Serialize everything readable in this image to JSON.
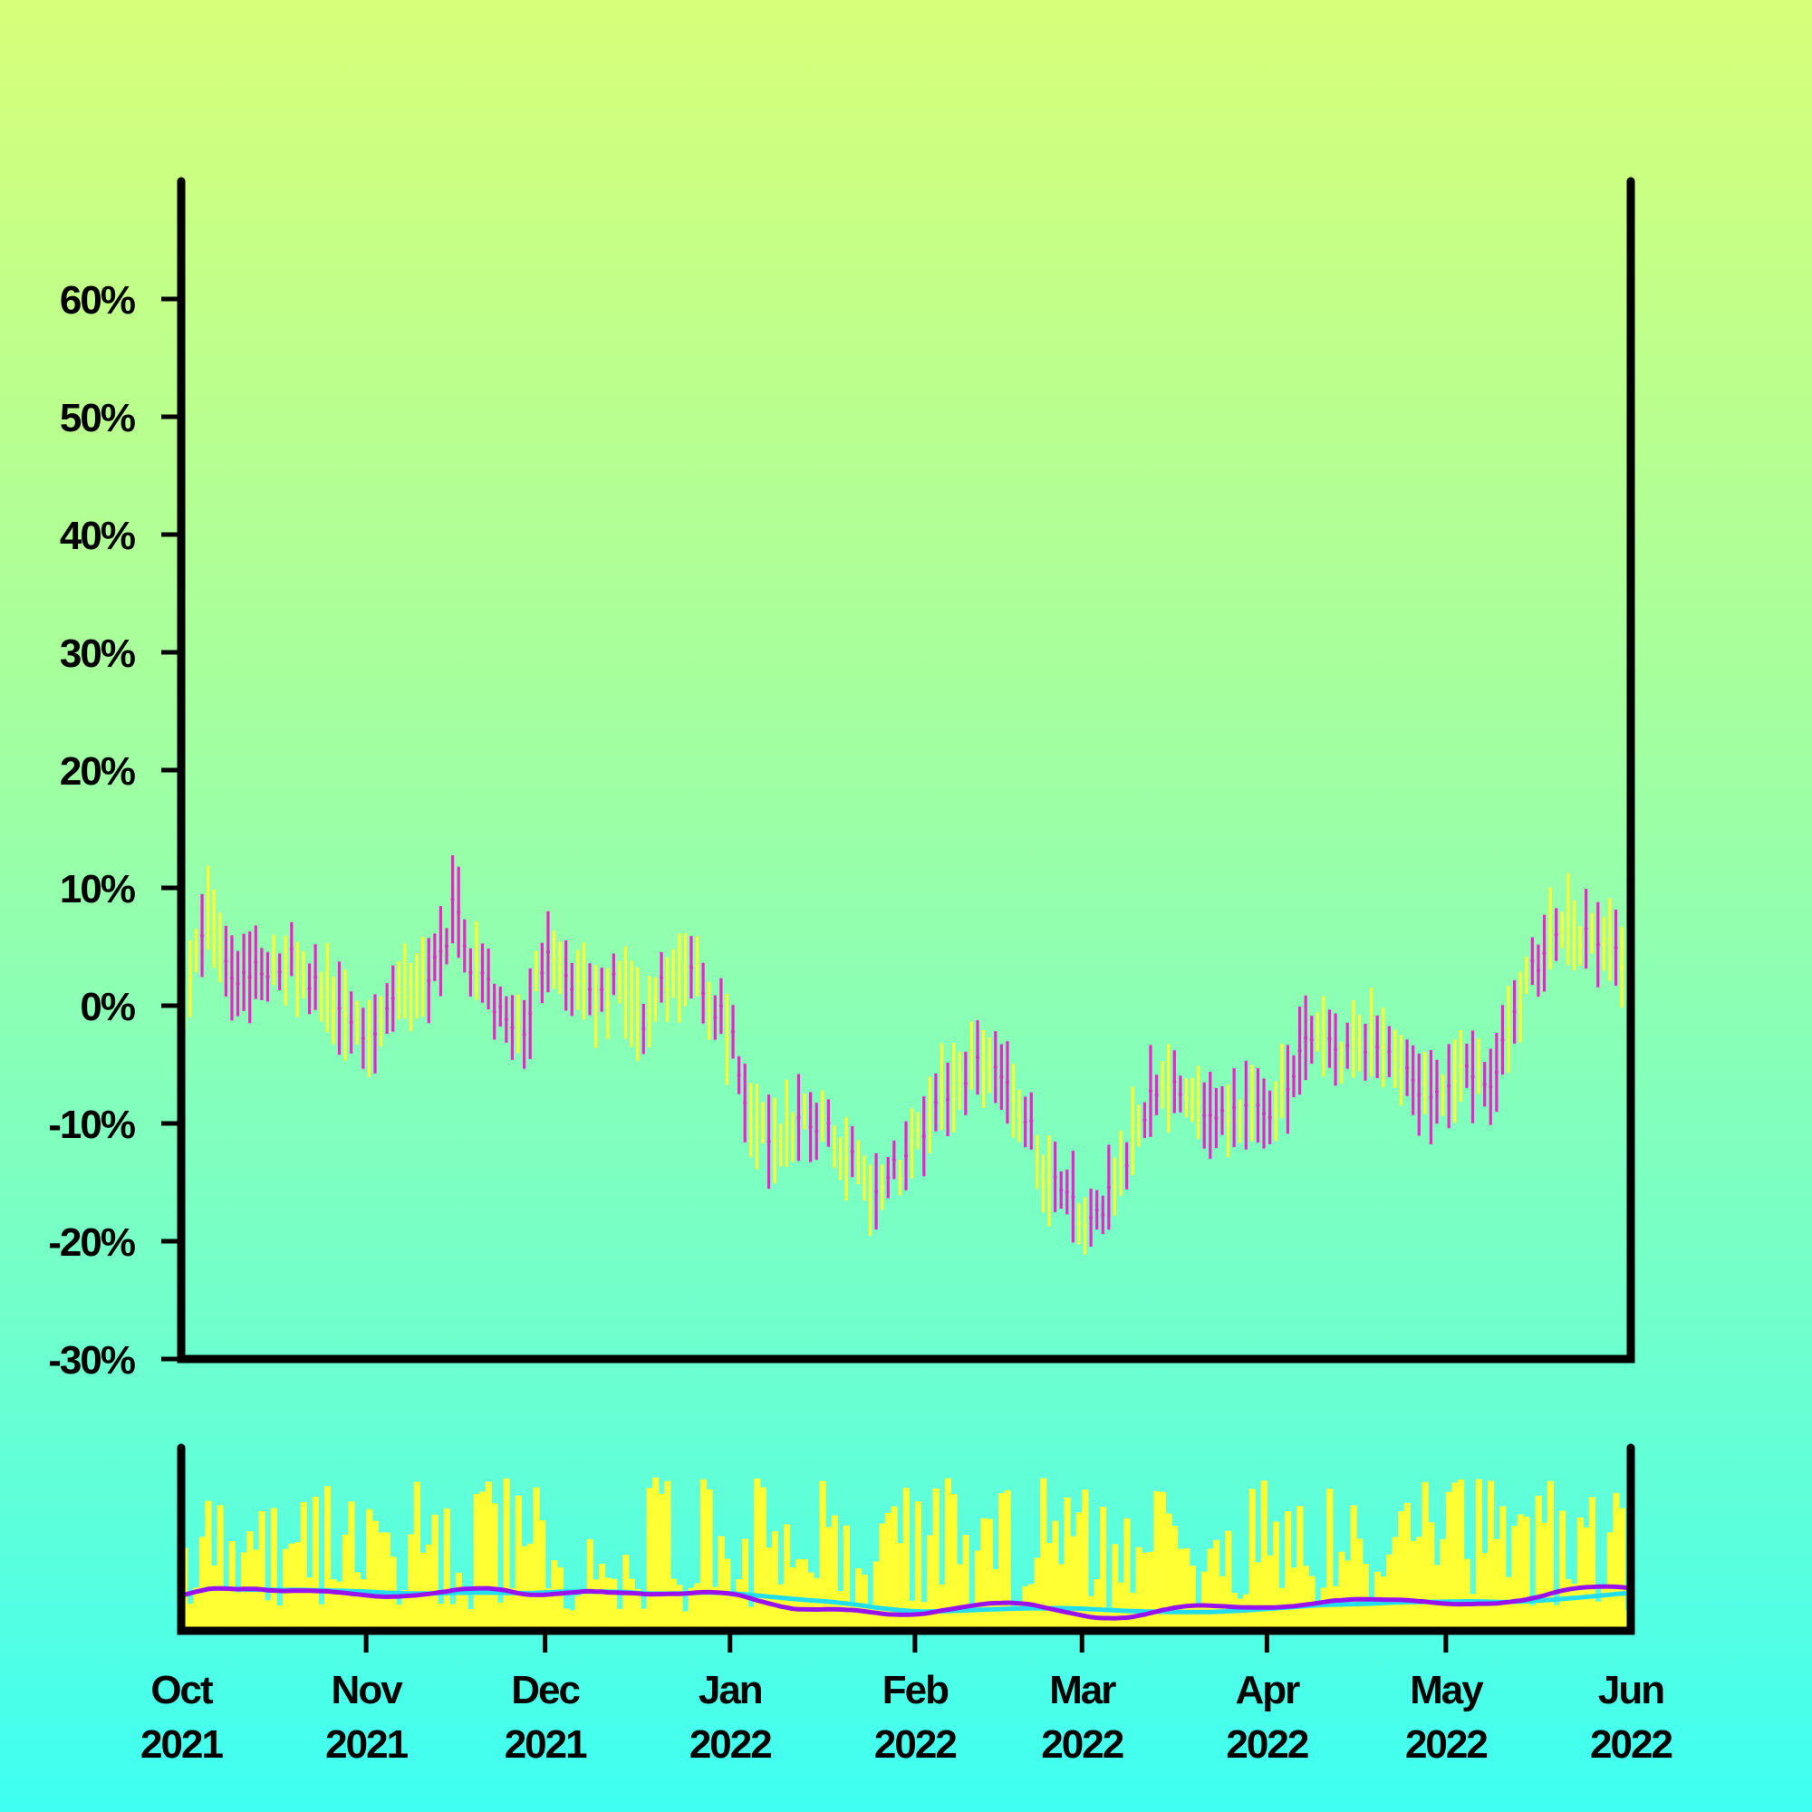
{
  "chart_data": {
    "type": "ohlc",
    "x_axis": {
      "type": "date",
      "range": [
        "2021-10-01",
        "2022-06-01"
      ],
      "ticks": [
        {
          "date": "2021-10-01",
          "month": "Oct",
          "year": "2021"
        },
        {
          "date": "2021-11-01",
          "month": "Nov",
          "year": "2021"
        },
        {
          "date": "2021-12-01",
          "month": "Dec",
          "year": "2021"
        },
        {
          "date": "2022-01-01",
          "month": "Jan",
          "year": "2022"
        },
        {
          "date": "2022-02-01",
          "month": "Feb",
          "year": "2022"
        },
        {
          "date": "2022-03-01",
          "month": "Mar",
          "year": "2022"
        },
        {
          "date": "2022-04-01",
          "month": "Apr",
          "year": "2022"
        },
        {
          "date": "2022-05-01",
          "month": "May",
          "year": "2022"
        },
        {
          "date": "2022-06-01",
          "month": "Jun",
          "year": "2022"
        }
      ]
    },
    "y_axis": {
      "unit": "percent",
      "range": [
        -30,
        70
      ],
      "ticks": [
        {
          "value": -30,
          "label": "-30%"
        },
        {
          "value": -20,
          "label": "-20%"
        },
        {
          "value": -10,
          "label": "-10%"
        },
        {
          "value": 0,
          "label": "0%"
        },
        {
          "value": 10,
          "label": "10%"
        },
        {
          "value": 20,
          "label": "20%"
        },
        {
          "value": 30,
          "label": "30%"
        },
        {
          "value": 40,
          "label": "40%"
        },
        {
          "value": 50,
          "label": "50%"
        },
        {
          "value": 60,
          "label": "60%"
        }
      ]
    },
    "colors": {
      "up": "#ffff33",
      "down": "#ee22cc",
      "volume": "#ffff33",
      "ma_fast": "#9911ee",
      "ma_slow": "#22ddee",
      "axis": "#000000"
    },
    "price_series": {
      "interval_days": 1,
      "points": [
        {
          "date": "2021-10-02",
          "value": 1
        },
        {
          "date": "2021-10-06",
          "value": 8
        },
        {
          "date": "2021-10-10",
          "value": 2
        },
        {
          "date": "2021-10-15",
          "value": 3
        },
        {
          "date": "2021-10-19",
          "value": 4
        },
        {
          "date": "2021-10-24",
          "value": 2
        },
        {
          "date": "2021-10-28",
          "value": -1
        },
        {
          "date": "2021-11-02",
          "value": -2
        },
        {
          "date": "2021-11-06",
          "value": 0
        },
        {
          "date": "2021-11-10",
          "value": 2
        },
        {
          "date": "2021-11-14",
          "value": 4
        },
        {
          "date": "2021-11-16",
          "value": 8
        },
        {
          "date": "2021-11-20",
          "value": 3
        },
        {
          "date": "2021-11-24",
          "value": 0
        },
        {
          "date": "2021-11-27",
          "value": -2
        },
        {
          "date": "2021-12-02",
          "value": 4
        },
        {
          "date": "2021-12-06",
          "value": 2
        },
        {
          "date": "2021-12-10",
          "value": 0
        },
        {
          "date": "2021-12-14",
          "value": 2
        },
        {
          "date": "2021-12-18",
          "value": -2
        },
        {
          "date": "2021-12-22",
          "value": 2
        },
        {
          "date": "2021-12-26",
          "value": 4
        },
        {
          "date": "2021-12-30",
          "value": 0
        },
        {
          "date": "2022-01-02",
          "value": -3
        },
        {
          "date": "2022-01-05",
          "value": -10
        },
        {
          "date": "2022-01-09",
          "value": -12
        },
        {
          "date": "2022-01-13",
          "value": -10
        },
        {
          "date": "2022-01-17",
          "value": -10
        },
        {
          "date": "2022-01-21",
          "value": -13
        },
        {
          "date": "2022-01-26",
          "value": -16
        },
        {
          "date": "2022-01-29",
          "value": -14
        },
        {
          "date": "2022-02-03",
          "value": -10
        },
        {
          "date": "2022-02-07",
          "value": -7
        },
        {
          "date": "2022-02-12",
          "value": -5
        },
        {
          "date": "2022-02-16",
          "value": -6
        },
        {
          "date": "2022-02-20",
          "value": -10
        },
        {
          "date": "2022-02-24",
          "value": -15
        },
        {
          "date": "2022-02-28",
          "value": -17
        },
        {
          "date": "2022-03-03",
          "value": -19
        },
        {
          "date": "2022-03-07",
          "value": -15
        },
        {
          "date": "2022-03-11",
          "value": -10
        },
        {
          "date": "2022-03-15",
          "value": -6
        },
        {
          "date": "2022-03-19",
          "value": -8
        },
        {
          "date": "2022-03-23",
          "value": -10
        },
        {
          "date": "2022-03-27",
          "value": -9
        },
        {
          "date": "2022-04-01",
          "value": -9
        },
        {
          "date": "2022-04-05",
          "value": -7
        },
        {
          "date": "2022-04-09",
          "value": -2
        },
        {
          "date": "2022-04-14",
          "value": -4
        },
        {
          "date": "2022-04-18",
          "value": -3
        },
        {
          "date": "2022-04-22",
          "value": -4
        },
        {
          "date": "2022-04-27",
          "value": -7
        },
        {
          "date": "2022-05-01",
          "value": -8
        },
        {
          "date": "2022-05-05",
          "value": -5
        },
        {
          "date": "2022-05-09",
          "value": -6
        },
        {
          "date": "2022-05-13",
          "value": 0
        },
        {
          "date": "2022-05-17",
          "value": 4
        },
        {
          "date": "2022-05-21",
          "value": 7
        },
        {
          "date": "2022-05-25",
          "value": 6
        },
        {
          "date": "2022-05-29",
          "value": 5
        },
        {
          "date": "2022-06-01",
          "value": 4
        }
      ]
    }
  }
}
